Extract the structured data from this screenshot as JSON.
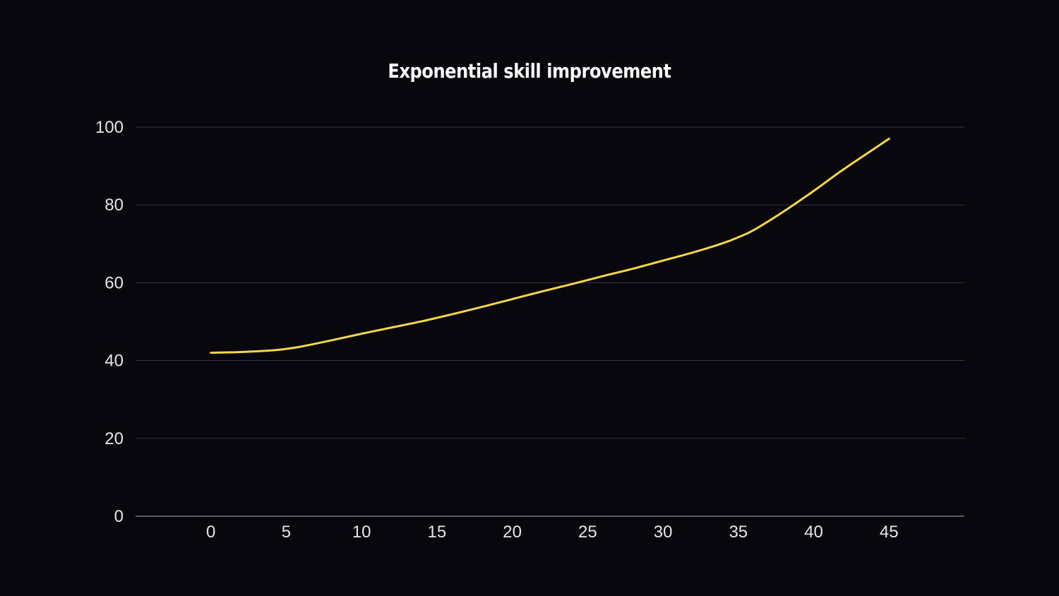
{
  "chart_data": {
    "type": "line",
    "title": "Exponential skill improvement",
    "xlabel": "",
    "ylabel": "",
    "xlim": [
      -5,
      50
    ],
    "ylim": [
      0,
      100
    ],
    "x_ticks": [
      0,
      5,
      10,
      15,
      20,
      25,
      30,
      35,
      40,
      45
    ],
    "y_ticks": [
      0,
      20,
      40,
      60,
      80,
      100
    ],
    "grid": "horizontal",
    "legend": "none",
    "series": [
      {
        "color": "#f7d64a",
        "x": [
          0,
          2,
          4,
          5,
          6,
          8,
          10,
          12,
          14,
          16,
          18,
          20,
          22,
          24,
          26,
          28,
          30,
          32,
          34,
          35,
          36,
          38,
          40,
          42,
          45
        ],
        "y": [
          42,
          42.2,
          42.6,
          43,
          43.6,
          45.2,
          46.9,
          48.5,
          50.1,
          51.9,
          53.8,
          55.8,
          57.8,
          59.7,
          61.7,
          63.6,
          65.7,
          67.8,
          70.2,
          71.7,
          73.5,
          78.3,
          83.6,
          89.2,
          97
        ]
      }
    ]
  }
}
